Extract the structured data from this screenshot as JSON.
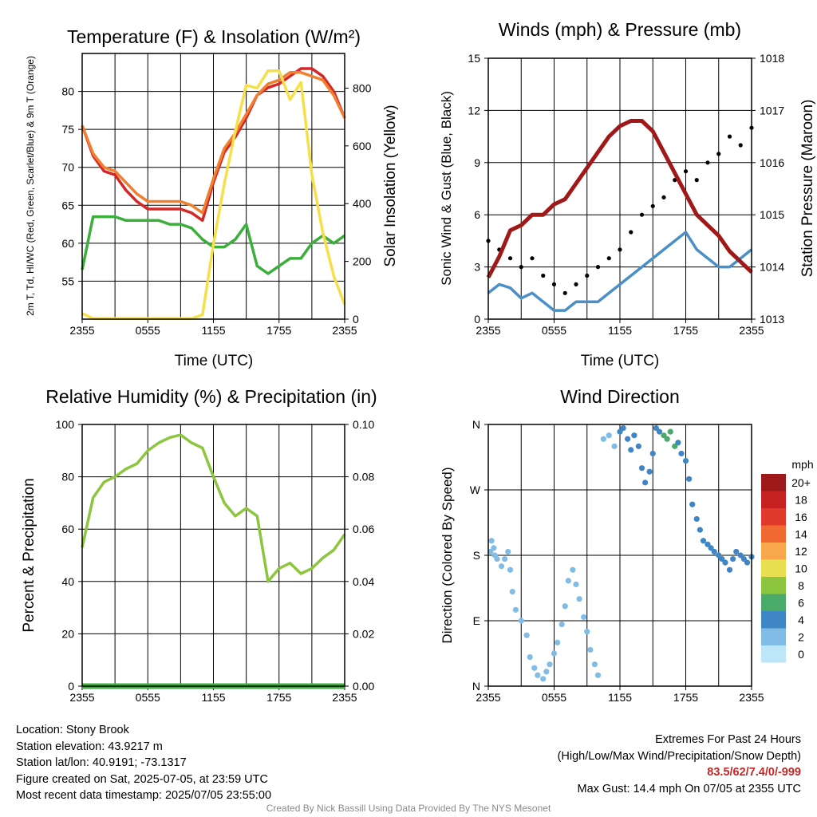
{
  "chart_data": [
    {
      "type": "line",
      "title": "Temperature (F) & Insolation (W/m²)",
      "xlabel": "Time (UTC)",
      "ylabel": "2m T, Td, HI/WC (Red, Green, Scarlet/Blue) & 9m T (Orange)",
      "y2label": "Solar Insolation (Yellow)",
      "x_ticks": [
        "2355",
        "0555",
        "1155",
        "1755",
        "2355"
      ],
      "y_ticks": [
        55,
        60,
        65,
        70,
        75,
        80
      ],
      "y2_ticks": [
        0,
        200,
        400,
        600,
        800
      ],
      "ylim": [
        50,
        85
      ],
      "y2lim": [
        0,
        920
      ],
      "grid": true,
      "x_hours": [
        0,
        1,
        2,
        3,
        4,
        5,
        6,
        7,
        8,
        9,
        10,
        11,
        12,
        13,
        14,
        15,
        16,
        17,
        18,
        19,
        20,
        21,
        22,
        23,
        24
      ],
      "series": [
        {
          "color": "#d62728",
          "axis": "left",
          "values": [
            75.5,
            71.5,
            69.5,
            69,
            67,
            65.5,
            64.5,
            64.5,
            64.5,
            64.5,
            64,
            63,
            68,
            72,
            74,
            76.5,
            79.5,
            80.5,
            81,
            82,
            83,
            83,
            82,
            80,
            76.5
          ]
        },
        {
          "color": "#f08030",
          "axis": "left",
          "values": [
            75.5,
            71.8,
            70,
            69.5,
            68,
            66.5,
            65.5,
            65.5,
            65.5,
            65.5,
            65,
            64,
            68.5,
            72.5,
            74.5,
            77,
            79.5,
            81,
            81.5,
            82.5,
            82.5,
            82,
            81.5,
            79.5,
            76.5
          ]
        },
        {
          "color": "#3cae3c",
          "axis": "left",
          "values": [
            56.5,
            63.5,
            63.5,
            63.5,
            63,
            63,
            63,
            63,
            62.5,
            62.5,
            62,
            60.5,
            59.5,
            59.5,
            60.5,
            62.5,
            57,
            56,
            57,
            58,
            58,
            60,
            61,
            60,
            61
          ]
        },
        {
          "color": "#f5e04a",
          "axis": "right",
          "values": [
            20,
            2,
            2,
            2,
            2,
            2,
            2,
            2,
            2,
            2,
            2,
            15,
            260,
            470,
            650,
            810,
            800,
            860,
            860,
            760,
            820,
            500,
            300,
            150,
            50
          ]
        }
      ]
    },
    {
      "type": "line",
      "title": "Winds (mph) & Pressure (mb)",
      "xlabel": "Time (UTC)",
      "ylabel": "Sonic Wind & Gust (Blue, Black)",
      "y2label": "Station Pressure (Maroon)",
      "x_ticks": [
        "2355",
        "0555",
        "1155",
        "1755",
        "2355"
      ],
      "y_ticks": [
        0,
        3,
        6,
        9,
        12,
        15
      ],
      "y2_ticks": [
        1013,
        1014,
        1015,
        1016,
        1017,
        1018
      ],
      "ylim": [
        0,
        15
      ],
      "y2lim": [
        1013,
        1018
      ],
      "grid": true,
      "x_hours": [
        0,
        1,
        2,
        3,
        4,
        5,
        6,
        7,
        8,
        9,
        10,
        11,
        12,
        13,
        14,
        15,
        16,
        17,
        18,
        19,
        20,
        21,
        22,
        23,
        24
      ],
      "series": [
        {
          "color": "#4a90c8",
          "axis": "left",
          "values": [
            1.5,
            2,
            1.8,
            1.2,
            1.5,
            1,
            0.5,
            0.5,
            1,
            1,
            1,
            1.5,
            2,
            2.5,
            3,
            3.5,
            4,
            4.5,
            5,
            4,
            3.5,
            3,
            3,
            3.5,
            4
          ]
        },
        {
          "color": "#000000",
          "axis": "left",
          "style": "dots",
          "values": [
            4.5,
            4,
            3.5,
            3,
            3.5,
            2.5,
            2,
            1.5,
            2,
            2.5,
            3,
            3.5,
            4,
            5,
            6,
            6.5,
            7,
            8,
            8.5,
            8,
            9,
            9.5,
            10.5,
            10,
            11
          ]
        },
        {
          "color": "#a01818",
          "axis": "right",
          "values": [
            1013.8,
            1014.2,
            1014.7,
            1014.8,
            1015,
            1015,
            1015.2,
            1015.3,
            1015.6,
            1015.9,
            1016.2,
            1016.5,
            1016.7,
            1016.8,
            1016.8,
            1016.6,
            1016.2,
            1015.8,
            1015.4,
            1015,
            1014.8,
            1014.6,
            1014.3,
            1014.1,
            1013.9
          ]
        }
      ]
    },
    {
      "type": "line",
      "title": "Relative Humidity (%) & Precipitation (in)",
      "ylabel": "Percent & Precipitation",
      "x_ticks": [
        "2355",
        "0555",
        "1155",
        "1755",
        "2355"
      ],
      "y_ticks": [
        0,
        20,
        40,
        60,
        80,
        100
      ],
      "y2_ticks": [
        "0.00",
        "0.02",
        "0.04",
        "0.06",
        "0.08",
        "0.10"
      ],
      "ylim": [
        0,
        100
      ],
      "y2lim": [
        0,
        0.1
      ],
      "grid": true,
      "x_hours": [
        0,
        1,
        2,
        3,
        4,
        5,
        6,
        7,
        8,
        9,
        10,
        11,
        12,
        13,
        14,
        15,
        16,
        17,
        18,
        19,
        20,
        21,
        22,
        23,
        24
      ],
      "series": [
        {
          "color": "#8cc63f",
          "axis": "left",
          "values": [
            53,
            72,
            78,
            80,
            83,
            85,
            90,
            93,
            95,
            96,
            93,
            91,
            80,
            70,
            65,
            68,
            65,
            40,
            45,
            47,
            43,
            45,
            49,
            52,
            58
          ]
        },
        {
          "color": "#3cae3c",
          "axis": "right",
          "values": [
            0,
            0,
            0,
            0,
            0,
            0,
            0,
            0,
            0,
            0,
            0,
            0,
            0,
            0,
            0,
            0,
            0,
            0,
            0,
            0,
            0,
            0,
            0,
            0,
            0
          ]
        }
      ]
    },
    {
      "type": "scatter",
      "title": "Wind Direction",
      "ylabel": "Direction (Colored By Speed)",
      "x_ticks": [
        "2355",
        "0555",
        "1155",
        "1755",
        "2355"
      ],
      "y_ticks": [
        "N",
        "E",
        "S",
        "W",
        "N"
      ],
      "ylim": [
        0,
        360
      ],
      "grid": true,
      "legend_title": "mph",
      "legend_labels": [
        "20+",
        "18",
        "16",
        "14",
        "12",
        "10",
        "8",
        "6",
        "4",
        "2",
        "0"
      ],
      "legend_colors": [
        "#9e1a1a",
        "#c62020",
        "#e03a2c",
        "#f06a32",
        "#f8a84a",
        "#e8e050",
        "#8cc63f",
        "#4aaa6a",
        "#3f86c6",
        "#80bce6",
        "#bde6f8"
      ],
      "point_hours": [
        0.2,
        0.3,
        0.5,
        0.6,
        0.8,
        1.2,
        1.5,
        1.8,
        2,
        2.2,
        2.5,
        3,
        3.5,
        3.8,
        4.2,
        4.5,
        5,
        5.3,
        5.6,
        6,
        6.3,
        6.7,
        7,
        7.3,
        7.7,
        8,
        8.3,
        8.7,
        9,
        9.3,
        9.7,
        10,
        10.5,
        11,
        11.5,
        12,
        12.3,
        12.7,
        13,
        13.3,
        13.7,
        14,
        14.3,
        14.7,
        15,
        15.3,
        15.6,
        16,
        16.3,
        16.6,
        17,
        17.3,
        17.6,
        18,
        18.3,
        18.6,
        19,
        19.3,
        19.6,
        20,
        20.3,
        20.6,
        21,
        21.3,
        21.6,
        22,
        22.3,
        22.6,
        23,
        23.3,
        23.6,
        24
      ],
      "point_dirs": [
        185,
        200,
        190,
        180,
        175,
        165,
        175,
        185,
        160,
        130,
        105,
        90,
        70,
        40,
        25,
        15,
        10,
        20,
        30,
        45,
        60,
        85,
        110,
        145,
        160,
        140,
        120,
        95,
        75,
        50,
        30,
        15,
        340,
        345,
        330,
        350,
        355,
        340,
        325,
        345,
        330,
        300,
        280,
        295,
        320,
        355,
        350,
        345,
        340,
        350,
        330,
        335,
        320,
        310,
        285,
        250,
        230,
        215,
        200,
        195,
        190,
        185,
        180,
        175,
        170,
        160,
        175,
        185,
        180,
        175,
        170,
        178
      ],
      "point_speeds": [
        1,
        1,
        1,
        1,
        1,
        1,
        1,
        1,
        1,
        1,
        1,
        1,
        1,
        1,
        1,
        1,
        1,
        1,
        1,
        1,
        1,
        1,
        2,
        2,
        2,
        2,
        2,
        2,
        2,
        2,
        2,
        2,
        1,
        1,
        1,
        3,
        3,
        3,
        4,
        4,
        4,
        4,
        3,
        3,
        3,
        4,
        4,
        5,
        6,
        6,
        5,
        4,
        4,
        3,
        3,
        3,
        3,
        3,
        3,
        3,
        3,
        3,
        3,
        3,
        3,
        4,
        4,
        4,
        4,
        4,
        4,
        4
      ]
    }
  ],
  "info": {
    "location": "Location: Stony Brook",
    "elevation": "Station elevation: 43.9217 m",
    "latlon": "Station lat/lon: 40.9191; -73.1317",
    "created": "Figure created on Sat, 2025-07-05, at 23:59 UTC",
    "recent": "Most recent data timestamp: 2025/07/05 23:55:00"
  },
  "extremes": {
    "title": "Extremes For Past 24 Hours",
    "subtitle": "(High/Low/Max Wind/Precipitation/Snow Depth)",
    "values": "83.5/62/7.4/0/-999",
    "gust": "Max Gust: 14.4 mph On 07/05 at 2355 UTC"
  },
  "credit": "Created By Nick Bassill Using Data Provided By The NYS Mesonet"
}
